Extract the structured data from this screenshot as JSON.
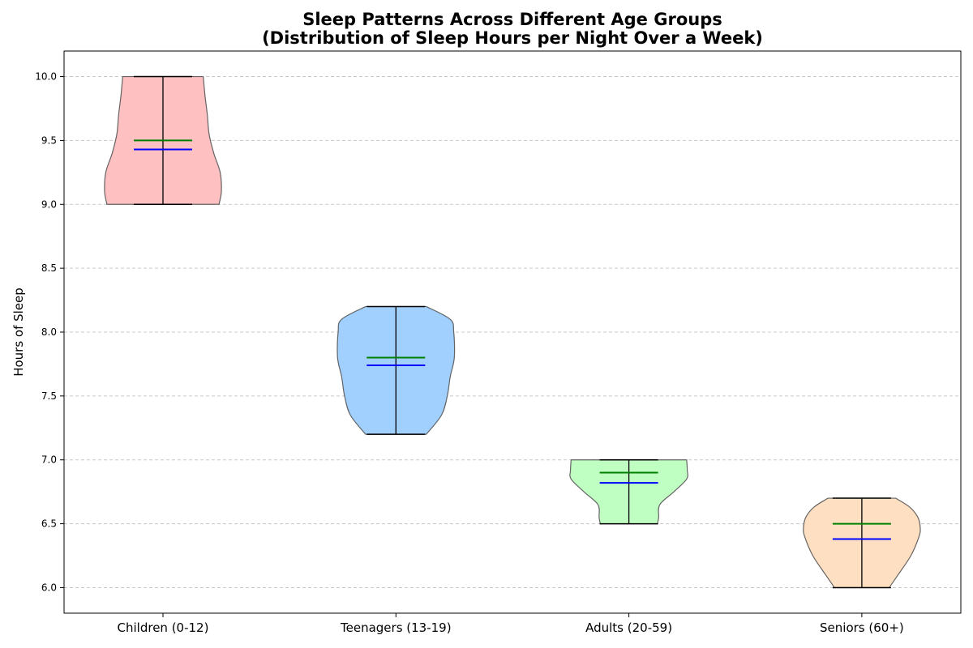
{
  "chart_data": {
    "type": "violin",
    "title": "Sleep Patterns Across Different Age Groups",
    "subtitle": "(Distribution of Sleep Hours per Night Over a Week)",
    "xlabel": "",
    "ylabel": "Hours of Sleep",
    "ylim": [
      5.8,
      10.2
    ],
    "yticks": [
      "6.0",
      "6.5",
      "7.0",
      "7.5",
      "8.0",
      "8.5",
      "9.0",
      "9.5",
      "10.0"
    ],
    "grid": "y-dashed",
    "categories": [
      "Children (0-12)",
      "Teenagers (13-19)",
      "Adults (20-59)",
      "Seniors (60+)"
    ],
    "series": [
      {
        "min": 9.0,
        "max": 10.0,
        "median": 9.5,
        "mean": 9.43,
        "fill_color": "#ffc0c2",
        "profile": [
          [
            9.0,
            0.96
          ],
          [
            9.1,
            1.0
          ],
          [
            9.25,
            0.98
          ],
          [
            9.4,
            0.87
          ],
          [
            9.55,
            0.79
          ],
          [
            9.7,
            0.76
          ],
          [
            9.85,
            0.72
          ],
          [
            10.0,
            0.69
          ]
        ]
      },
      {
        "min": 7.2,
        "max": 8.2,
        "median": 7.8,
        "mean": 7.74,
        "fill_color": "#a2d0fe",
        "profile": [
          [
            7.2,
            0.52
          ],
          [
            7.35,
            0.78
          ],
          [
            7.5,
            0.88
          ],
          [
            7.65,
            0.93
          ],
          [
            7.8,
            1.0
          ],
          [
            8.0,
            0.99
          ],
          [
            8.1,
            0.93
          ],
          [
            8.2,
            0.52
          ]
        ]
      },
      {
        "min": 6.5,
        "max": 7.0,
        "median": 6.9,
        "mean": 6.82,
        "fill_color": "#c0ffc2",
        "profile": [
          [
            6.5,
            0.49
          ],
          [
            6.55,
            0.51
          ],
          [
            6.65,
            0.53
          ],
          [
            6.75,
            0.77
          ],
          [
            6.85,
            0.99
          ],
          [
            6.92,
            1.0
          ],
          [
            7.0,
            0.99
          ]
        ]
      },
      {
        "min": 6.0,
        "max": 6.7,
        "median": 6.5,
        "mean": 6.38,
        "fill_color": "#ffdfc1",
        "profile": [
          [
            6.0,
            0.47
          ],
          [
            6.1,
            0.62
          ],
          [
            6.25,
            0.84
          ],
          [
            6.4,
            0.98
          ],
          [
            6.47,
            1.0
          ],
          [
            6.55,
            0.96
          ],
          [
            6.63,
            0.82
          ],
          [
            6.7,
            0.58
          ]
        ]
      }
    ],
    "line_colors": {
      "extrema": "#000000",
      "median": "#008000",
      "mean": "#0000ff"
    },
    "violin_edge_color": "#555555"
  }
}
